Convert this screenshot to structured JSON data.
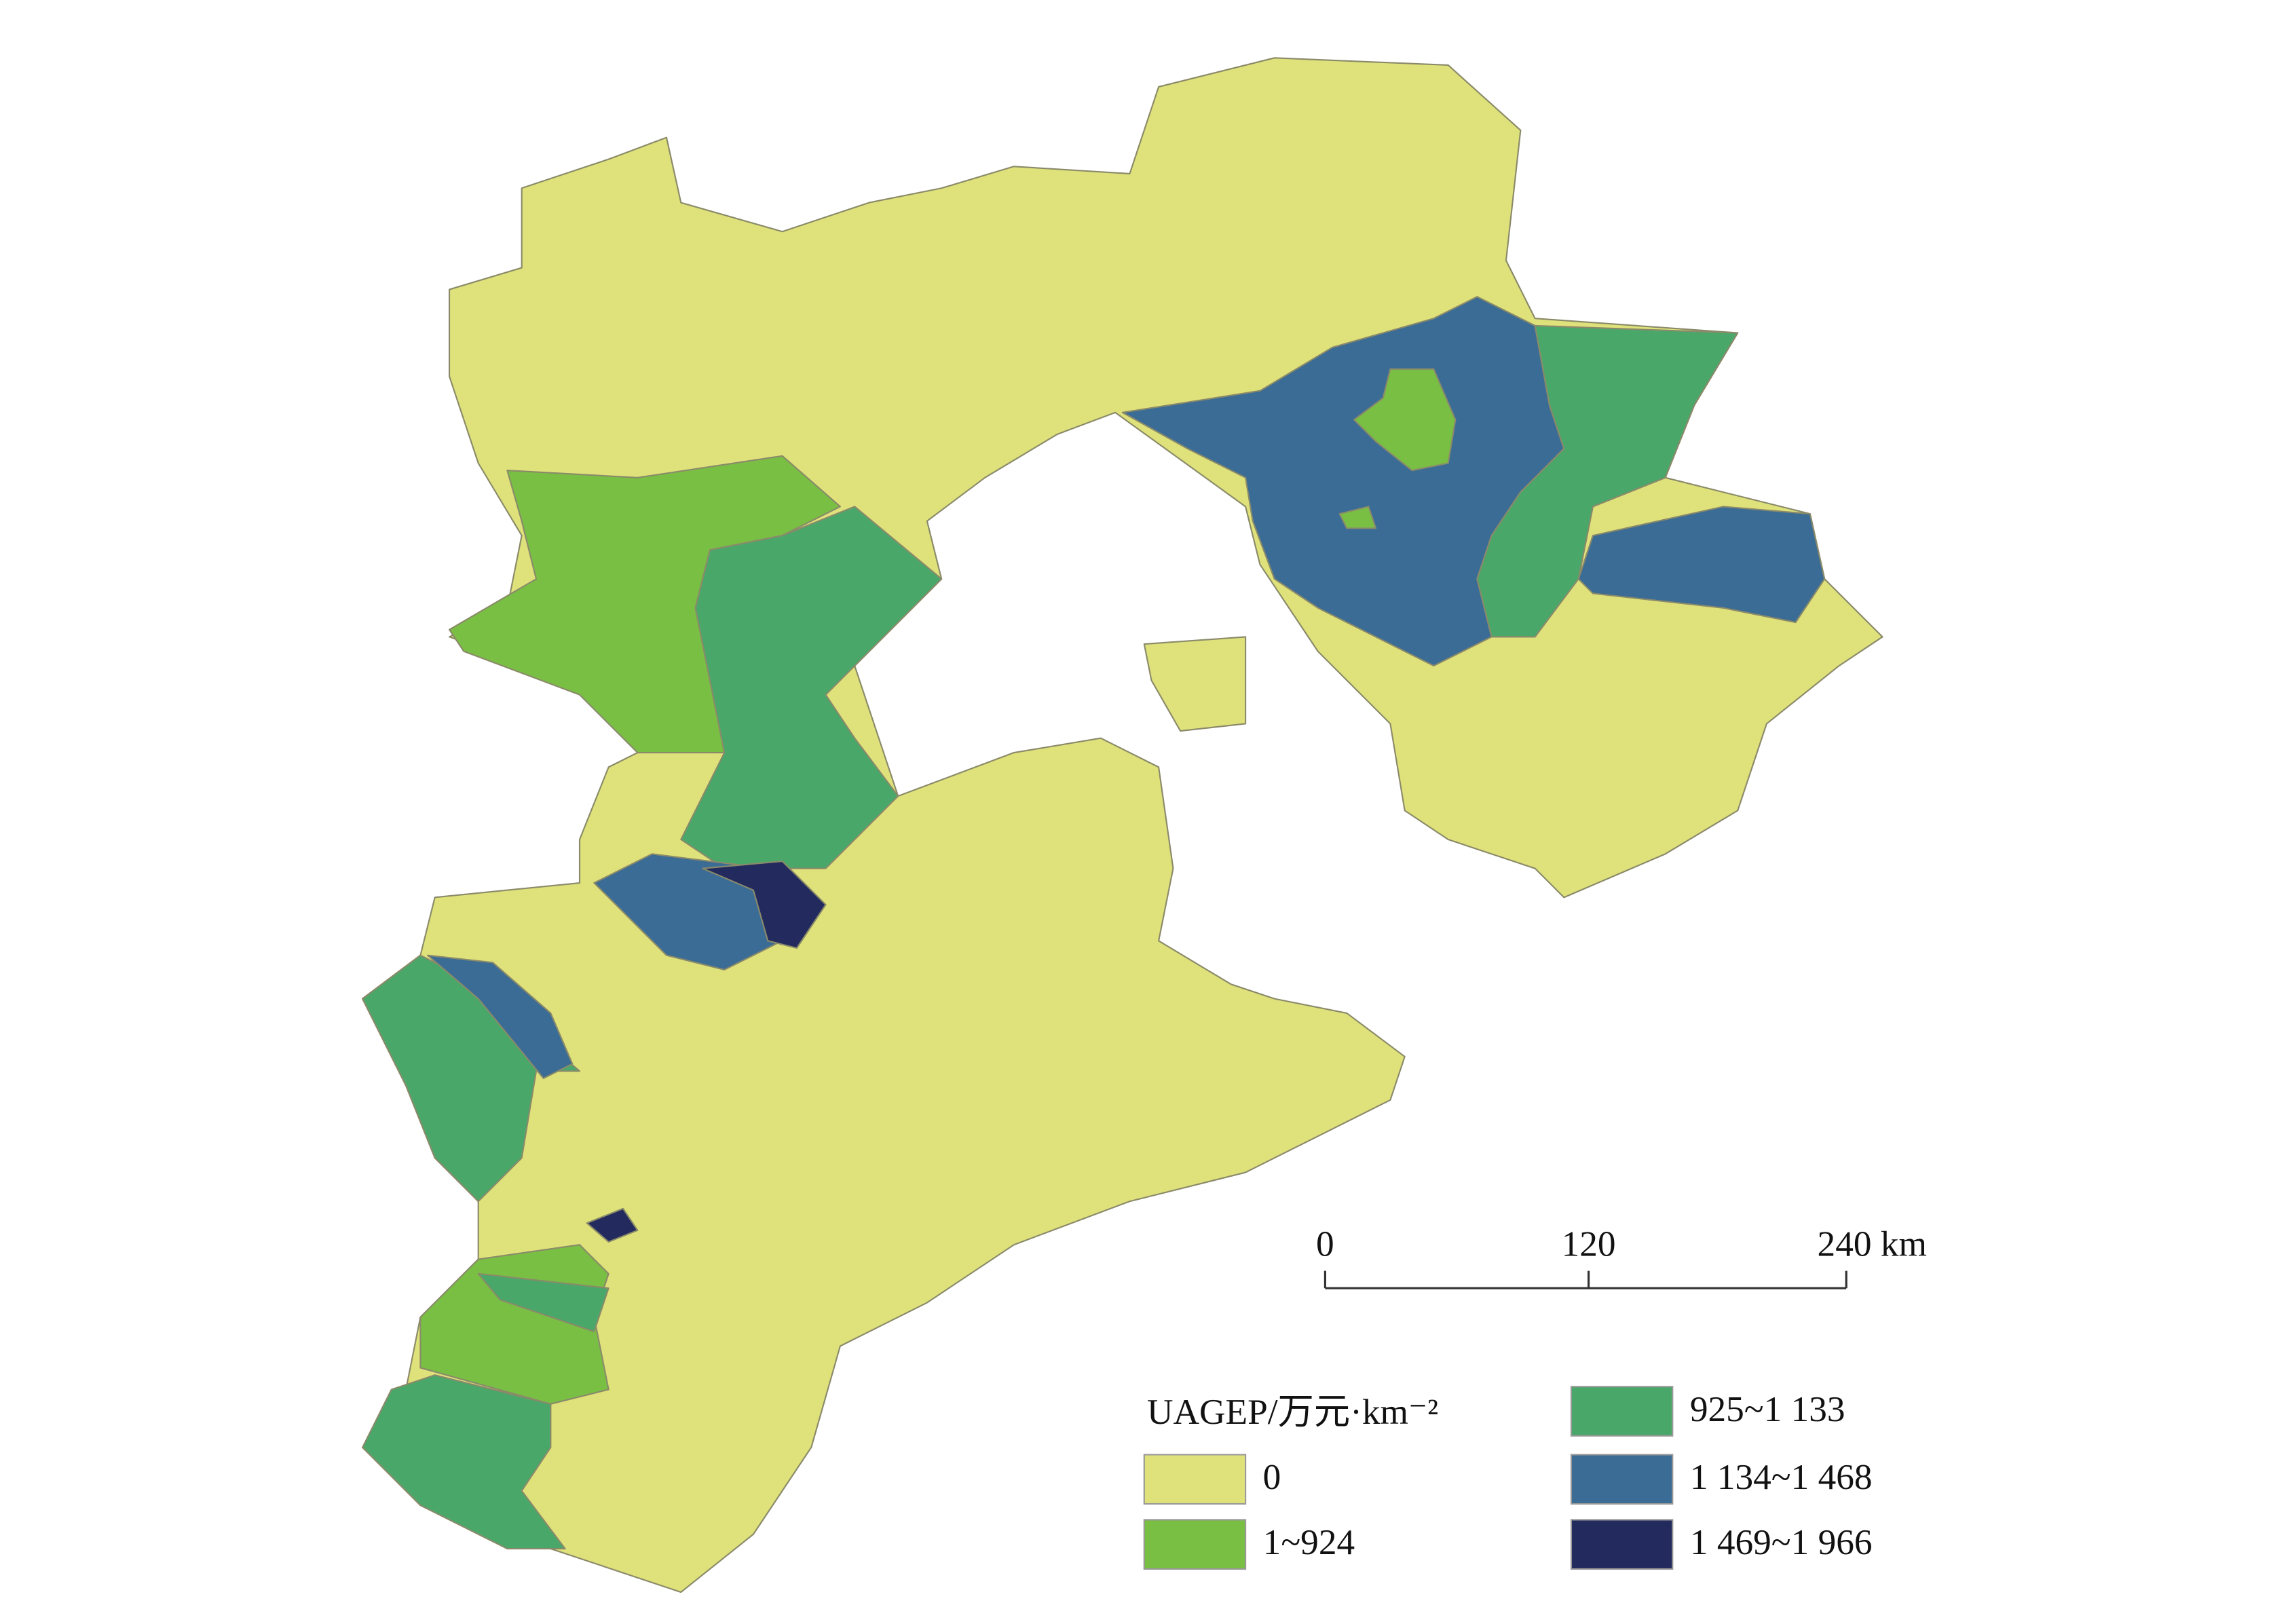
{
  "legend": {
    "title": "UAGEP/万元·km⁻²",
    "items": [
      {
        "label": "0",
        "color": "#dfe27a"
      },
      {
        "label": "1~924",
        "color": "#79bf44"
      },
      {
        "label": "925~1 133",
        "color": "#4aa76a"
      },
      {
        "label": "1 134~1 468",
        "color": "#3b6c95"
      },
      {
        "label": "1 469~1 966",
        "color": "#232b5e"
      }
    ]
  },
  "scale_bar": {
    "labels": [
      "0",
      "120",
      "240 km"
    ]
  }
}
